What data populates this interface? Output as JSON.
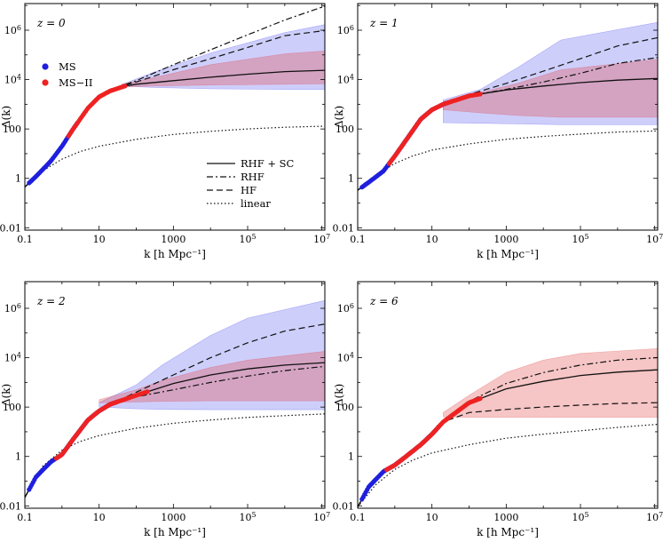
{
  "figure": {
    "legend": {
      "points": [
        {
          "label": "MS",
          "color": "#1f1fdd"
        },
        {
          "label": "MS−II",
          "color": "#ee2222"
        }
      ],
      "lines": [
        {
          "label": "RHF + SC",
          "dash": "solid"
        },
        {
          "label": "RHF",
          "dash": "dashdot"
        },
        {
          "label": "HF",
          "dash": "dashed"
        },
        {
          "label": "linear",
          "dash": "dotted"
        }
      ]
    }
  },
  "chart_data": [
    {
      "type": "line",
      "panel_label": "z = 0",
      "xlabel": "k [h Mpc⁻¹]",
      "ylabel": "Δ(k)",
      "xscale": "log",
      "yscale": "log",
      "xlim": [
        0.1,
        12000000.0
      ],
      "ylim": [
        0.008,
        12000000.0
      ],
      "xticks": [
        {
          "v": 0.1,
          "t": "0.1"
        },
        {
          "v": 10,
          "t": "10"
        },
        {
          "v": 1000,
          "t": "1000"
        },
        {
          "v": 100000.0,
          "t": "10",
          "sup": "5"
        },
        {
          "v": 10000000.0,
          "t": "10",
          "sup": "7"
        }
      ],
      "yticks": [
        {
          "v": 0.01,
          "t": "0.01"
        },
        {
          "v": 1,
          "t": "1"
        },
        {
          "v": 100,
          "t": "100"
        },
        {
          "v": 10000.0,
          "t": "10",
          "sup": "4"
        },
        {
          "v": 1000000.0,
          "t": "10",
          "sup": "6"
        }
      ],
      "bands": [
        {
          "name": "MS band",
          "color": "#3a3af0",
          "opacity": 0.25,
          "x": [
            40,
            300,
            10000.0,
            1000000.0,
            80000000.0
          ],
          "lower": [
            5500,
            4800,
            4200,
            4000,
            4000
          ],
          "upper": [
            6200,
            20000,
            120000,
            800000,
            3000000
          ]
        },
        {
          "name": "MS-II band",
          "color": "#e04040",
          "opacity": 0.3,
          "x": [
            40,
            300,
            10000.0,
            1000000.0,
            80000000.0
          ],
          "lower": [
            5000,
            5500,
            6000,
            6500,
            7000
          ],
          "upper": [
            6500,
            12000,
            40000,
            110000,
            180000
          ]
        }
      ],
      "series": [
        {
          "name": "RHF + SC",
          "dash": "solid",
          "x": [
            0.1,
            0.2,
            0.5,
            1,
            2,
            5,
            10,
            20,
            50,
            100,
            1000,
            10000.0,
            100000.0,
            1000000.0,
            80000000.0
          ],
          "y": [
            0.45,
            1.2,
            5,
            20,
            100,
            700,
            2000,
            3500,
            5500,
            6500,
            9000,
            12500,
            16500,
            21000,
            26000
          ]
        },
        {
          "name": "RHF",
          "dash": "dashdot",
          "x": [
            0.1,
            0.2,
            0.5,
            1,
            2,
            5,
            10,
            20,
            50,
            100,
            1000,
            10000.0,
            100000.0,
            1000000.0,
            80000000.0
          ],
          "y": [
            0.45,
            1.2,
            5,
            20,
            100,
            700,
            2000,
            3500,
            6200,
            9000,
            40000,
            160000,
            650000,
            2600000,
            25000000
          ]
        },
        {
          "name": "HF",
          "dash": "dashed",
          "x": [
            0.1,
            0.2,
            0.5,
            1,
            2,
            5,
            10,
            20,
            50,
            100,
            1000,
            10000.0,
            100000.0,
            1000000.0,
            80000000.0
          ],
          "y": [
            0.45,
            1.2,
            5,
            20,
            100,
            700,
            2000,
            3500,
            6000,
            8000,
            25000,
            70000,
            200000,
            600000,
            1400000
          ]
        },
        {
          "name": "linear",
          "dash": "dotted",
          "x": [
            0.1,
            0.3,
            1,
            3,
            10,
            100,
            1000,
            10000.0,
            100000.0,
            1000000.0,
            80000000.0
          ],
          "y": [
            0.45,
            2,
            6,
            12,
            20,
            38,
            60,
            80,
            100,
            118,
            140
          ]
        }
      ],
      "points": [
        {
          "name": "MS",
          "color": "#1f1fdd",
          "x_range": [
            0.13,
            2.5
          ],
          "from_series": "RHF + SC"
        },
        {
          "name": "MS-II",
          "color": "#ee2222",
          "x_range": [
            1.5,
            50
          ],
          "from_series": "RHF + SC"
        }
      ]
    },
    {
      "type": "line",
      "panel_label": "z = 1",
      "xlabel": "k [h Mpc⁻¹]",
      "ylabel": "Δ(k)",
      "xscale": "log",
      "yscale": "log",
      "xlim": [
        0.1,
        12000000.0
      ],
      "ylim": [
        0.008,
        12000000.0
      ],
      "xticks": [
        {
          "v": 0.1,
          "t": "0.1"
        },
        {
          "v": 10,
          "t": "10"
        },
        {
          "v": 1000,
          "t": "1000"
        },
        {
          "v": 100000.0,
          "t": "10",
          "sup": "5"
        },
        {
          "v": 10000000.0,
          "t": "10",
          "sup": "7"
        }
      ],
      "yticks": [
        {
          "v": 0.01,
          "t": "0.01"
        },
        {
          "v": 1,
          "t": "1"
        },
        {
          "v": 100,
          "t": "100"
        },
        {
          "v": 10000.0,
          "t": "10",
          "sup": "4"
        },
        {
          "v": 1000000.0,
          "t": "10",
          "sup": "6"
        }
      ],
      "bands": [
        {
          "name": "MS band",
          "color": "#3a3af0",
          "opacity": 0.25,
          "x": [
            20,
            200,
            2000,
            30000.0,
            80000000.0
          ],
          "lower": [
            180,
            170,
            160,
            150,
            150
          ],
          "upper": [
            1500,
            4000,
            30000,
            400000,
            3500000
          ]
        },
        {
          "name": "MS-II band",
          "color": "#e04040",
          "opacity": 0.3,
          "x": [
            20,
            200,
            2000,
            30000.0,
            80000000.0
          ],
          "lower": [
            600,
            450,
            350,
            300,
            300
          ],
          "upper": [
            1300,
            3000,
            7000,
            25000,
            90000
          ]
        }
      ],
      "series": [
        {
          "name": "RHF + SC",
          "dash": "solid",
          "x": [
            0.1,
            0.2,
            0.5,
            1,
            2,
            5,
            10,
            20,
            100,
            1000,
            10000.0,
            100000.0,
            1000000.0,
            80000000.0
          ],
          "y": [
            0.33,
            0.7,
            2,
            8,
            35,
            250,
            600,
            1000,
            2200,
            3800,
            5500,
            7500,
            9500,
            12500
          ]
        },
        {
          "name": "RHF",
          "dash": "dashdot",
          "x": [
            0.1,
            0.2,
            0.5,
            1,
            2,
            5,
            10,
            20,
            100,
            1000,
            10000.0,
            100000.0,
            1000000.0,
            80000000.0
          ],
          "y": [
            0.33,
            0.7,
            2,
            8,
            35,
            250,
            600,
            1000,
            2200,
            4000,
            8000,
            18000,
            45000,
            120000
          ]
        },
        {
          "name": "HF",
          "dash": "dashed",
          "x": [
            0.1,
            0.2,
            0.5,
            1,
            2,
            5,
            10,
            20,
            100,
            1000,
            10000.0,
            100000.0,
            1000000.0,
            80000000.0
          ],
          "y": [
            0.33,
            0.7,
            2,
            8,
            35,
            250,
            600,
            1000,
            2500,
            7000,
            22000,
            70000,
            230000,
            900000
          ]
        },
        {
          "name": "linear",
          "dash": "dotted",
          "x": [
            0.1,
            0.3,
            1,
            3,
            10,
            100,
            1000,
            10000.0,
            100000.0,
            1000000.0,
            80000000.0
          ],
          "y": [
            0.33,
            1.3,
            4,
            8,
            14,
            25,
            38,
            50,
            62,
            75,
            90
          ]
        }
      ],
      "points": [
        {
          "name": "MS",
          "color": "#1f1fdd",
          "x_range": [
            0.13,
            25
          ],
          "from_series": "RHF + SC"
        },
        {
          "name": "MS-II",
          "color": "#ee2222",
          "x_range": [
            0.7,
            200
          ],
          "from_series": "RHF + SC"
        }
      ]
    },
    {
      "type": "line",
      "panel_label": "z = 2",
      "xlabel": "k [h Mpc⁻¹]",
      "ylabel": "Δ(k)",
      "xscale": "log",
      "yscale": "log",
      "xlim": [
        0.1,
        12000000.0
      ],
      "ylim": [
        0.008,
        12000000.0
      ],
      "xticks": [
        {
          "v": 0.1,
          "t": "0.1"
        },
        {
          "v": 10,
          "t": "10"
        },
        {
          "v": 1000,
          "t": "1000"
        },
        {
          "v": 100000.0,
          "t": "10",
          "sup": "5"
        },
        {
          "v": 10000000.0,
          "t": "10",
          "sup": "7"
        }
      ],
      "yticks": [
        {
          "v": 0.01,
          "t": "0.01"
        },
        {
          "v": 1,
          "t": "1"
        },
        {
          "v": 100,
          "t": "100"
        },
        {
          "v": 10000.0,
          "t": "10",
          "sup": "4"
        },
        {
          "v": 1000000.0,
          "t": "10",
          "sup": "6"
        }
      ],
      "bands": [
        {
          "name": "MS band",
          "color": "#3a3af0",
          "opacity": 0.25,
          "x": [
            10,
            100,
            500,
            10000.0,
            100000.0,
            80000000.0
          ],
          "lower": [
            100,
            85,
            80,
            78,
            78,
            78
          ],
          "upper": [
            150,
            800,
            5000,
            80000,
            400000,
            4000000
          ]
        },
        {
          "name": "MS-II band",
          "color": "#e04040",
          "opacity": 0.3,
          "x": [
            10,
            100,
            500,
            10000.0,
            100000.0,
            80000000.0
          ],
          "lower": [
            150,
            160,
            170,
            180,
            180,
            180
          ],
          "upper": [
            200,
            500,
            1200,
            4000,
            8000,
            25000
          ]
        }
      ],
      "series": [
        {
          "name": "RHF + SC",
          "dash": "solid",
          "x": [
            0.1,
            0.2,
            0.5,
            1,
            2,
            5,
            10,
            20,
            100,
            1000,
            10000.0,
            100000.0,
            1000000.0,
            80000000.0
          ],
          "y": [
            0.022,
            0.15,
            0.6,
            1.2,
            5,
            30,
            70,
            130,
            300,
            900,
            2000,
            3500,
            5000,
            7500
          ]
        },
        {
          "name": "RHF",
          "dash": "dashdot",
          "x": [
            0.1,
            0.2,
            0.5,
            1,
            2,
            5,
            10,
            20,
            100,
            1000,
            10000.0,
            100000.0,
            1000000.0,
            80000000.0
          ],
          "y": [
            0.022,
            0.15,
            0.6,
            1.2,
            5,
            30,
            70,
            130,
            260,
            500,
            1000,
            1800,
            3000,
            6000
          ]
        },
        {
          "name": "HF",
          "dash": "dashed",
          "x": [
            0.1,
            0.2,
            0.5,
            1,
            2,
            5,
            10,
            20,
            100,
            1000,
            10000.0,
            100000.0,
            1000000.0,
            80000000.0
          ],
          "y": [
            0.022,
            0.15,
            0.6,
            1.2,
            5,
            30,
            70,
            130,
            400,
            2000,
            10000,
            40000,
            120000,
            380000
          ]
        },
        {
          "name": "linear",
          "dash": "dotted",
          "x": [
            0.1,
            0.3,
            1,
            3,
            10,
            100,
            1000,
            10000.0,
            100000.0,
            1000000.0,
            80000000.0
          ],
          "y": [
            0.022,
            0.4,
            1.8,
            4,
            7,
            14,
            22,
            30,
            38,
            45,
            60
          ]
        }
      ],
      "points": [
        {
          "name": "MS",
          "color": "#1f1fdd",
          "x_range": [
            0.13,
            30
          ],
          "from_series": "RHF + SC"
        },
        {
          "name": "MS-II",
          "color": "#ee2222",
          "x_range": [
            0.7,
            200
          ],
          "from_series": "RHF + SC"
        }
      ]
    },
    {
      "type": "line",
      "panel_label": "z = 6",
      "xlabel": "k [h Mpc⁻¹]",
      "ylabel": "Δ(k)",
      "xscale": "log",
      "yscale": "log",
      "xlim": [
        0.1,
        12000000.0
      ],
      "ylim": [
        0.008,
        12000000.0
      ],
      "xticks": [
        {
          "v": 0.1,
          "t": "0.1"
        },
        {
          "v": 10,
          "t": "10"
        },
        {
          "v": 1000,
          "t": "1000"
        },
        {
          "v": 100000.0,
          "t": "10",
          "sup": "5"
        },
        {
          "v": 10000000.0,
          "t": "10",
          "sup": "7"
        }
      ],
      "yticks": [
        {
          "v": 0.01,
          "t": "0.01"
        },
        {
          "v": 1,
          "t": "1"
        },
        {
          "v": 100,
          "t": "100"
        },
        {
          "v": 10000.0,
          "t": "10",
          "sup": "4"
        },
        {
          "v": 1000000.0,
          "t": "10",
          "sup": "6"
        }
      ],
      "bands": [
        {
          "name": "MS-II band",
          "color": "#e04040",
          "opacity": 0.3,
          "x": [
            20,
            100,
            1000,
            10000.0,
            100000.0,
            80000000.0
          ],
          "lower": [
            40,
            38,
            38,
            38,
            38,
            38
          ],
          "upper": [
            60,
            300,
            2500,
            8000,
            15000,
            28000
          ]
        }
      ],
      "series": [
        {
          "name": "RHF + SC",
          "dash": "solid",
          "x": [
            0.1,
            0.2,
            0.5,
            1,
            2,
            5,
            10,
            20,
            100,
            1000,
            10000.0,
            100000.0,
            1000000.0,
            80000000.0
          ],
          "y": [
            0.009,
            0.06,
            0.25,
            0.45,
            1,
            3,
            8,
            25,
            150,
            550,
            1100,
            1900,
            2600,
            3800
          ]
        },
        {
          "name": "RHF",
          "dash": "dashdot",
          "x": [
            0.1,
            0.2,
            0.5,
            1,
            2,
            5,
            10,
            20,
            100,
            1000,
            10000.0,
            100000.0,
            1000000.0,
            80000000.0
          ],
          "y": [
            0.009,
            0.06,
            0.25,
            0.45,
            1,
            3,
            8,
            25,
            170,
            900,
            2500,
            5000,
            8000,
            12000
          ]
        },
        {
          "name": "HF",
          "dash": "dashed",
          "x": [
            0.1,
            0.2,
            0.5,
            1,
            2,
            5,
            10,
            20,
            100,
            1000,
            10000.0,
            100000.0,
            1000000.0,
            80000000.0
          ],
          "y": [
            0.009,
            0.06,
            0.25,
            0.45,
            1,
            3,
            8,
            25,
            60,
            80,
            100,
            120,
            140,
            160
          ]
        },
        {
          "name": "linear",
          "dash": "dotted",
          "x": [
            0.1,
            0.3,
            1,
            3,
            10,
            100,
            1000,
            10000.0,
            100000.0,
            1000000.0,
            80000000.0
          ],
          "y": [
            0.009,
            0.07,
            0.3,
            0.7,
            1.4,
            3,
            5.5,
            8,
            11,
            15,
            25
          ]
        }
      ],
      "points": [
        {
          "name": "MS",
          "color": "#1f1fdd",
          "x_range": [
            0.13,
            15
          ],
          "from_series": "RHF + SC"
        },
        {
          "name": "MS-II",
          "color": "#ee2222",
          "x_range": [
            0.6,
            200
          ],
          "from_series": "RHF + SC"
        }
      ]
    }
  ]
}
